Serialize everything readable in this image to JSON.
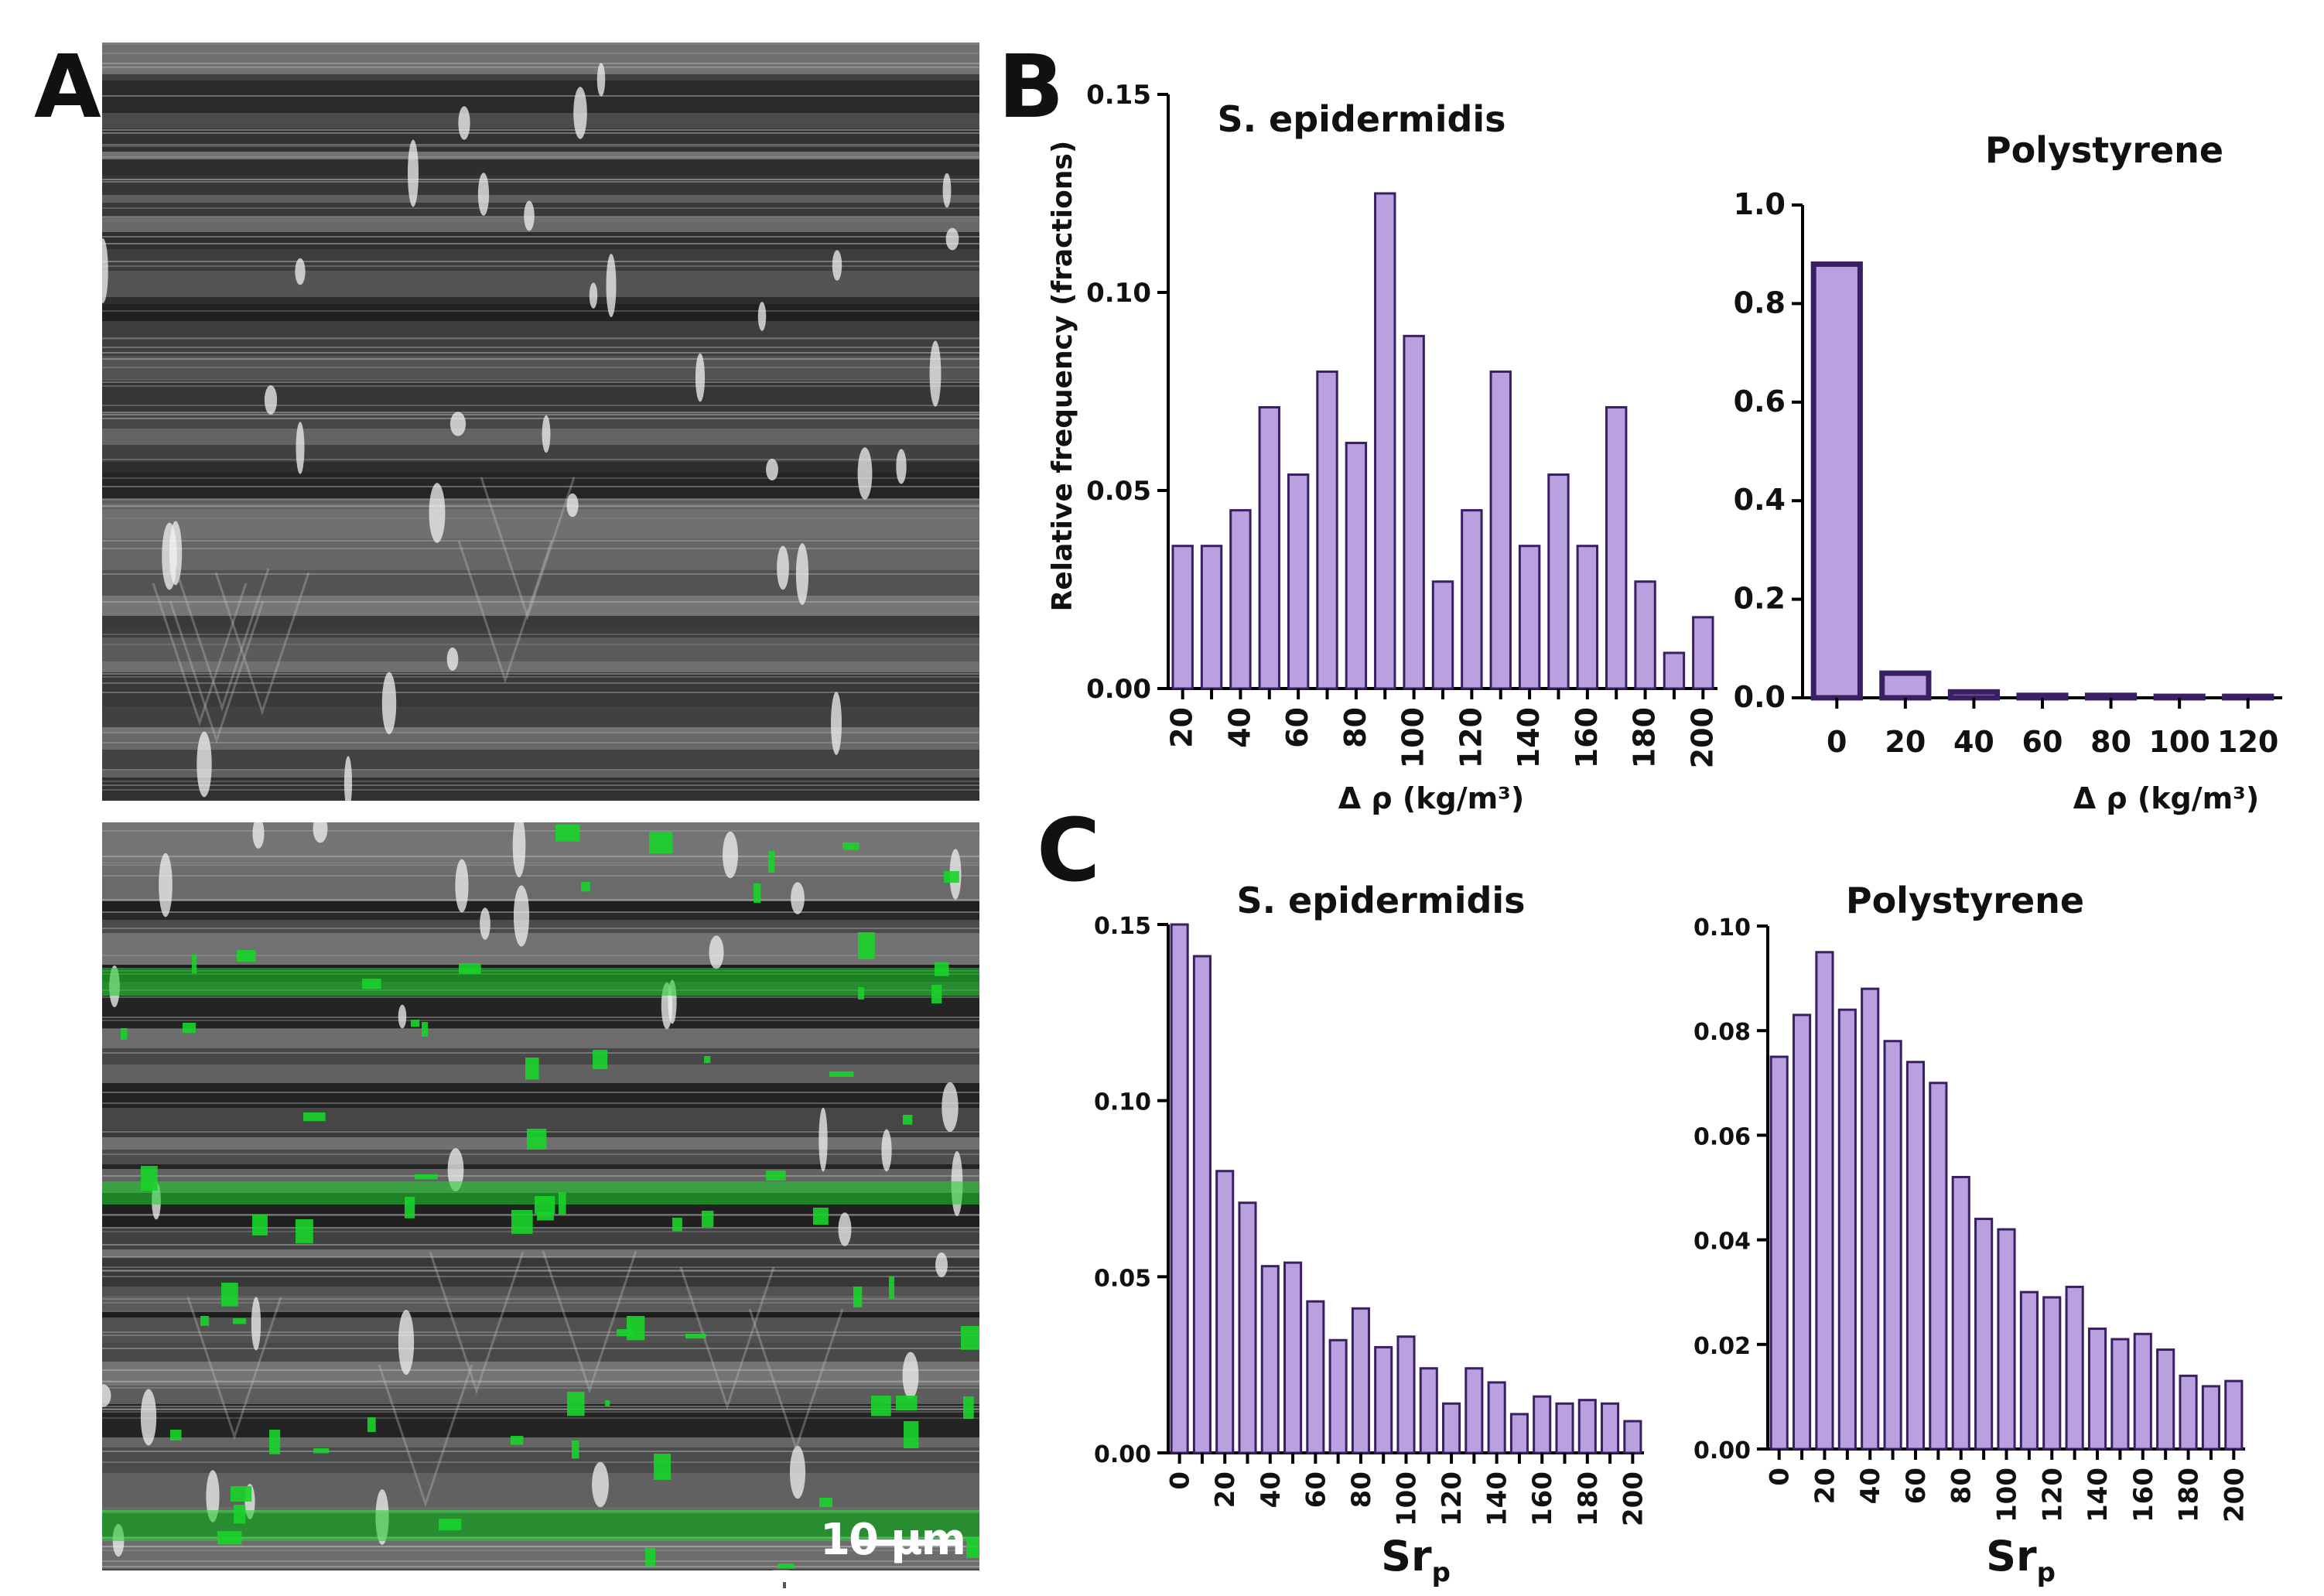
{
  "panel_letters": [
    "A",
    "B",
    "C"
  ],
  "scale_bar_label": "10 µm",
  "colors": {
    "bar_fill": "#b9a0df",
    "bar_stroke": "#3b1f63",
    "overlay_green": "#19d42a",
    "axis": "#000000"
  },
  "chart_data": [
    {
      "id": "B1",
      "type": "bar",
      "title": "S. epidermidis",
      "xlabel": "Δ ρ  (kg/m³)",
      "ylabel": "Relative frequency (fractions)",
      "ylim": [
        0,
        0.15
      ],
      "yticks": [
        "0.00",
        "0.05",
        "0.10",
        "0.15"
      ],
      "categories": [
        20,
        30,
        40,
        50,
        60,
        70,
        80,
        90,
        100,
        110,
        120,
        130,
        140,
        150,
        160,
        170,
        180,
        190,
        200
      ],
      "xtick_labels": [
        "20",
        "40",
        "60",
        "80",
        "100",
        "120",
        "140",
        "160",
        "180",
        "200"
      ],
      "values": [
        0.036,
        0.036,
        0.045,
        0.071,
        0.054,
        0.08,
        0.062,
        0.125,
        0.089,
        0.027,
        0.045,
        0.08,
        0.036,
        0.054,
        0.036,
        0.071,
        0.027,
        0.009,
        0.018
      ]
    },
    {
      "id": "B2",
      "type": "bar",
      "title": "Polystyrene",
      "xlabel": "Δ ρ  (kg/m³)",
      "ylabel": "",
      "ylim": [
        0,
        1.0
      ],
      "yticks": [
        "0.0",
        "0.2",
        "0.4",
        "0.6",
        "0.8",
        "1.0"
      ],
      "categories": [
        0,
        20,
        40,
        60,
        80,
        100,
        120
      ],
      "xtick_labels": [
        "0",
        "20",
        "40",
        "60",
        "80",
        "100",
        "120"
      ],
      "values": [
        0.88,
        0.05,
        0.012,
        0.005,
        0.005,
        0.003,
        0.003
      ]
    },
    {
      "id": "C1",
      "type": "bar",
      "title": "S. epidermidis",
      "xlabel": "Sr",
      "xlabel_sub": "p",
      "ylabel": "",
      "ylim": [
        0,
        0.15
      ],
      "yticks": [
        "0.00",
        "0.05",
        "0.10",
        "0.15"
      ],
      "categories": [
        0,
        10,
        20,
        30,
        40,
        50,
        60,
        70,
        80,
        90,
        100,
        110,
        120,
        130,
        140,
        150,
        160,
        170,
        180,
        190,
        200
      ],
      "xtick_labels": [
        "0",
        "20",
        "40",
        "60",
        "80",
        "100",
        "120",
        "140",
        "160",
        "180",
        "200"
      ],
      "values": [
        0.15,
        0.141,
        0.08,
        0.071,
        0.053,
        0.054,
        0.043,
        0.032,
        0.041,
        0.03,
        0.033,
        0.024,
        0.014,
        0.024,
        0.02,
        0.011,
        0.016,
        0.014,
        0.015,
        0.014,
        0.009
      ]
    },
    {
      "id": "C2",
      "type": "bar",
      "title": "Polystyrene",
      "xlabel": "Sr",
      "xlabel_sub": "p",
      "ylabel": "",
      "ylim": [
        0,
        0.1
      ],
      "yticks": [
        "0.00",
        "0.02",
        "0.04",
        "0.06",
        "0.08",
        "0.10"
      ],
      "categories": [
        0,
        10,
        20,
        30,
        40,
        50,
        60,
        70,
        80,
        90,
        100,
        110,
        120,
        130,
        140,
        150,
        160,
        170,
        180,
        190,
        200
      ],
      "xtick_labels": [
        "0",
        "20",
        "40",
        "60",
        "80",
        "100",
        "120",
        "140",
        "160",
        "180",
        "200"
      ],
      "values": [
        0.075,
        0.083,
        0.095,
        0.084,
        0.088,
        0.078,
        0.074,
        0.07,
        0.052,
        0.044,
        0.042,
        0.03,
        0.029,
        0.031,
        0.023,
        0.021,
        0.022,
        0.019,
        0.014,
        0.012,
        0.013
      ]
    }
  ]
}
